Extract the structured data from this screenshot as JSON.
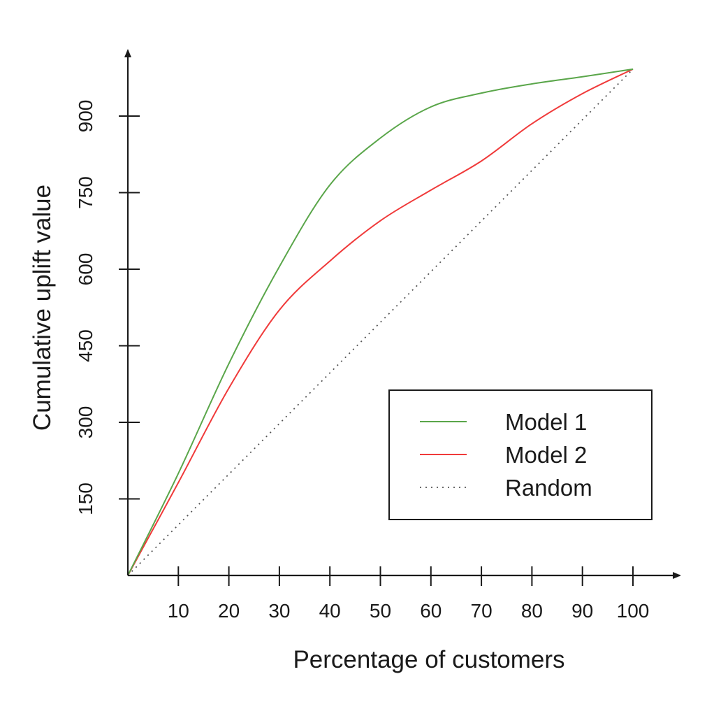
{
  "chart_data": {
    "type": "line",
    "title": "",
    "xlabel": "Percentage of customers",
    "ylabel": "Cumulative uplift value",
    "xlim": [
      0,
      100
    ],
    "ylim": [
      0,
      990
    ],
    "x_ticks": [
      10,
      20,
      30,
      40,
      50,
      60,
      70,
      80,
      90,
      100
    ],
    "y_ticks": [
      150,
      300,
      450,
      600,
      750,
      900
    ],
    "grid": false,
    "legend_position": "lower right",
    "x": [
      0,
      10,
      20,
      30,
      40,
      50,
      60,
      70,
      80,
      90,
      100
    ],
    "series": [
      {
        "name": "Model 1",
        "color": "#5aa64a",
        "style": "solid",
        "values": [
          0,
          200,
          415,
          605,
          765,
          857,
          918,
          945,
          963,
          977,
          992
        ]
      },
      {
        "name": "Model 2",
        "color": "#f03a3a",
        "style": "solid",
        "values": [
          0,
          182,
          367,
          520,
          616,
          695,
          755,
          812,
          885,
          944,
          992
        ]
      },
      {
        "name": "Random",
        "color": "#555555",
        "style": "dotted",
        "values": [
          0,
          99,
          198,
          298,
          397,
          496,
          595,
          694,
          794,
          893,
          992
        ]
      }
    ]
  },
  "legend": {
    "items": [
      {
        "label": "Model 1"
      },
      {
        "label": "Model 2"
      },
      {
        "label": "Random"
      }
    ]
  },
  "axes": {
    "xlabel": "Percentage of customers",
    "ylabel": "Cumulative uplift value"
  }
}
